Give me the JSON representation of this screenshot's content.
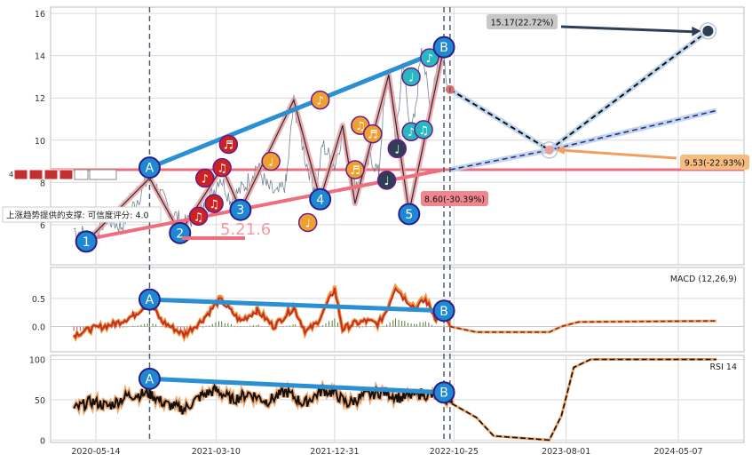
{
  "chart_data": {
    "type": "line",
    "x_ticks": [
      "2020-05-14",
      "2021-03-10",
      "2021-12-31",
      "2022-10-25",
      "2023-08-01",
      "2024-05-07"
    ],
    "vlines": [
      "2020-09-25",
      "2022-09-30",
      "2022-10-15"
    ],
    "panels": {
      "price": {
        "ylim": [
          4.1,
          16.3
        ],
        "y_ticks": [
          6,
          8,
          10,
          12,
          14,
          16
        ],
        "resistance_level": 8.6,
        "price_series": [
          [
            "2020-03-20",
            5.8
          ],
          [
            "2020-05-01",
            5.4
          ],
          [
            "2020-06-10",
            6.3
          ],
          [
            "2020-07-15",
            5.9
          ],
          [
            "2020-09-01",
            7.4
          ],
          [
            "2020-09-25",
            8.3
          ],
          [
            "2020-11-10",
            6.8
          ],
          [
            "2020-12-20",
            6.0
          ],
          [
            "2021-01-20",
            6.4
          ],
          [
            "2021-02-15",
            6.9
          ],
          [
            "2021-03-20",
            8.3
          ],
          [
            "2021-04-15",
            7.2
          ],
          [
            "2021-05-20",
            7.8
          ],
          [
            "2021-06-20",
            8.8
          ],
          [
            "2021-07-15",
            7.8
          ],
          [
            "2021-08-10",
            7.4
          ],
          [
            "2021-09-01",
            8.0
          ],
          [
            "2021-09-20",
            11.8
          ],
          [
            "2021-10-20",
            9.0
          ],
          [
            "2021-11-15",
            7.6
          ],
          [
            "2021-12-01",
            9.8
          ],
          [
            "2021-12-31",
            8.8
          ],
          [
            "2022-01-20",
            10.4
          ],
          [
            "2022-02-15",
            8.2
          ],
          [
            "2022-03-01",
            7.9
          ],
          [
            "2022-04-01",
            9.2
          ],
          [
            "2022-04-20",
            8.4
          ],
          [
            "2022-05-01",
            11.2
          ],
          [
            "2022-05-15",
            13.1
          ],
          [
            "2022-06-01",
            10.1
          ],
          [
            "2022-06-20",
            13.6
          ],
          [
            "2022-07-10",
            10.4
          ],
          [
            "2022-07-20",
            11.2
          ],
          [
            "2022-08-05",
            14.6
          ],
          [
            "2022-08-25",
            11.6
          ],
          [
            "2022-09-15",
            13.9
          ],
          [
            "2022-09-30",
            14.2
          ],
          [
            "2022-10-10",
            12.4
          ]
        ],
        "trend_line_upper": [
          [
            "2020-09-25",
            8.7
          ],
          [
            "2022-09-30",
            14.3
          ]
        ],
        "trend_line_lower": [
          [
            "2020-04-20",
            5.3
          ],
          [
            "2022-09-30",
            8.6
          ]
        ],
        "forecast_paths": [
          [
            [
              "2022-10-15",
              12.4
            ],
            [
              "2023-06-20",
              9.53
            ],
            [
              "2024-07-20",
              15.17
            ]
          ],
          [
            [
              "2022-10-15",
              8.6
            ],
            [
              "2023-06-20",
              9.53
            ],
            [
              "2024-08-10",
              11.4
            ]
          ]
        ],
        "points": [
          {
            "label": "1",
            "date": "2020-04-20",
            "value": 5.2,
            "kind": "wave"
          },
          {
            "label": "A",
            "date": "2020-09-25",
            "value": 8.7,
            "kind": "anchor"
          },
          {
            "label": "2",
            "date": "2020-12-10",
            "value": 5.6,
            "kind": "wave"
          },
          {
            "label": "3",
            "date": "2021-05-10",
            "value": 6.7,
            "kind": "wave"
          },
          {
            "label": "4",
            "date": "2021-11-25",
            "value": 7.2,
            "kind": "wave"
          },
          {
            "label": "5",
            "date": "2022-07-05",
            "value": 6.5,
            "kind": "wave"
          },
          {
            "label": "B",
            "date": "2022-09-30",
            "value": 14.4,
            "kind": "anchor"
          }
        ],
        "note_markers": [
          {
            "date": "2021-01-25",
            "value": 6.4,
            "color": "red",
            "symbol": "♫"
          },
          {
            "date": "2021-03-05",
            "value": 7.0,
            "color": "red",
            "symbol": "♫"
          },
          {
            "date": "2021-02-10",
            "value": 8.2,
            "color": "red",
            "symbol": "♪"
          },
          {
            "date": "2021-03-25",
            "value": 8.7,
            "color": "red",
            "symbol": "♫"
          },
          {
            "date": "2021-04-10",
            "value": 9.8,
            "color": "red",
            "symbol": "♬"
          },
          {
            "date": "2021-07-25",
            "value": 9.0,
            "color": "orange",
            "symbol": "♩"
          },
          {
            "date": "2021-10-25",
            "value": 6.1,
            "color": "orange",
            "symbol": "♩"
          },
          {
            "date": "2021-11-25",
            "value": 11.9,
            "color": "orange",
            "symbol": "♪"
          },
          {
            "date": "2022-02-20",
            "value": 8.6,
            "color": "orange",
            "symbol": "♬"
          },
          {
            "date": "2022-03-05",
            "value": 10.7,
            "color": "orange",
            "symbol": "♫"
          },
          {
            "date": "2022-04-05",
            "value": 10.3,
            "color": "orange",
            "symbol": "♬"
          },
          {
            "date": "2022-05-10",
            "value": 8.1,
            "color": "navy",
            "symbol": "♩"
          },
          {
            "date": "2022-06-05",
            "value": 9.6,
            "color": "navy",
            "symbol": "♩"
          },
          {
            "date": "2022-07-10",
            "value": 13.0,
            "color": "teal",
            "symbol": "♩"
          },
          {
            "date": "2022-07-10",
            "value": 10.4,
            "color": "teal",
            "symbol": "♪"
          },
          {
            "date": "2022-08-10",
            "value": 10.5,
            "color": "teal",
            "symbol": "♫"
          },
          {
            "date": "2022-08-25",
            "value": 13.9,
            "color": "teal",
            "symbol": "♪"
          }
        ],
        "annotations": [
          {
            "text": "15.17(22.72%)",
            "value": 15.17,
            "change_pct": 22.72,
            "style": "gray"
          },
          {
            "text": "9.53(-22.93%)",
            "value": 9.53,
            "change_pct": -22.93,
            "style": "orange"
          },
          {
            "text": "8.60(-30.39%)",
            "value": 8.6,
            "change_pct": -30.39,
            "style": "red"
          }
        ],
        "support_label": "上涨趋势提供的支撑: 可信度评分: 4.0",
        "faded_value_label": "5.21.6",
        "badge_row_label": "4"
      },
      "macd": {
        "label": "MACD (12,26,9)",
        "ylim": [
          -0.45,
          1.05
        ],
        "y_ticks": [
          0.0,
          0.5
        ],
        "macd_series": [
          [
            "2020-03-20",
            -0.15
          ],
          [
            "2020-05-01",
            -0.05
          ],
          [
            "2020-07-01",
            0.05
          ],
          [
            "2020-08-15",
            0.2
          ],
          [
            "2020-09-25",
            0.45
          ],
          [
            "2020-10-25",
            0.1
          ],
          [
            "2020-12-20",
            -0.15
          ],
          [
            "2021-02-01",
            0.1
          ],
          [
            "2021-03-20",
            0.5
          ],
          [
            "2021-05-10",
            0.1
          ],
          [
            "2021-06-20",
            0.3
          ],
          [
            "2021-08-01",
            0.0
          ],
          [
            "2021-09-20",
            0.35
          ],
          [
            "2021-10-20",
            -0.1
          ],
          [
            "2021-11-15",
            0.05
          ],
          [
            "2021-12-05",
            0.3
          ],
          [
            "2021-12-31",
            0.7
          ],
          [
            "2022-01-20",
            -0.05
          ],
          [
            "2022-02-15",
            0.05
          ],
          [
            "2022-03-20",
            0.1
          ],
          [
            "2022-04-20",
            0.05
          ],
          [
            "2022-05-10",
            0.3
          ],
          [
            "2022-06-01",
            0.75
          ],
          [
            "2022-06-20",
            0.55
          ],
          [
            "2022-07-20",
            0.35
          ],
          [
            "2022-08-15",
            0.5
          ],
          [
            "2022-09-10",
            0.15
          ],
          [
            "2022-09-30",
            0.25
          ],
          [
            "2022-10-15",
            0.0
          ]
        ],
        "forecast_series": [
          [
            "2022-10-15",
            0.0
          ],
          [
            "2022-12-20",
            -0.1
          ],
          [
            "2023-06-20",
            -0.1
          ],
          [
            "2023-07-20",
            0.0
          ],
          [
            "2023-09-01",
            0.08
          ],
          [
            "2024-08-10",
            0.1
          ]
        ],
        "trend_line": [
          [
            "2020-09-25",
            0.48
          ],
          [
            "2022-09-30",
            0.28
          ]
        ],
        "points": [
          {
            "label": "A",
            "date": "2020-09-25",
            "value": 0.48
          },
          {
            "label": "B",
            "date": "2022-09-30",
            "value": 0.28
          }
        ]
      },
      "rsi": {
        "label": "RSI 14",
        "ylim": [
          -3,
          105
        ],
        "y_ticks": [
          0,
          50,
          100
        ],
        "rsi_series": [
          [
            "2020-03-20",
            38
          ],
          [
            "2020-05-01",
            48
          ],
          [
            "2020-06-15",
            42
          ],
          [
            "2020-08-01",
            55
          ],
          [
            "2020-09-25",
            58
          ],
          [
            "2020-11-01",
            45
          ],
          [
            "2020-12-20",
            38
          ],
          [
            "2021-02-01",
            55
          ],
          [
            "2021-03-10",
            62
          ],
          [
            "2021-04-20",
            50
          ],
          [
            "2021-06-01",
            58
          ],
          [
            "2021-07-15",
            48
          ],
          [
            "2021-09-01",
            60
          ],
          [
            "2021-10-15",
            45
          ],
          [
            "2021-12-01",
            62
          ],
          [
            "2021-12-31",
            58
          ],
          [
            "2022-02-01",
            45
          ],
          [
            "2022-03-15",
            55
          ],
          [
            "2022-05-01",
            60
          ],
          [
            "2022-06-15",
            52
          ],
          [
            "2022-08-01",
            58
          ],
          [
            "2022-09-30",
            52
          ],
          [
            "2022-10-20",
            45
          ]
        ],
        "forecast_series": [
          [
            "2022-10-20",
            45
          ],
          [
            "2022-12-20",
            28
          ],
          [
            "2023-02-01",
            5
          ],
          [
            "2023-06-20",
            0
          ],
          [
            "2023-07-20",
            30
          ],
          [
            "2023-08-20",
            90
          ],
          [
            "2023-10-01",
            100
          ],
          [
            "2024-08-10",
            100
          ]
        ],
        "trend_line": [
          [
            "2020-09-25",
            76
          ],
          [
            "2022-09-30",
            59
          ]
        ],
        "points": [
          {
            "label": "A",
            "date": "2020-09-25",
            "value": 76
          },
          {
            "label": "B",
            "date": "2022-09-30",
            "value": 59
          }
        ]
      }
    }
  }
}
